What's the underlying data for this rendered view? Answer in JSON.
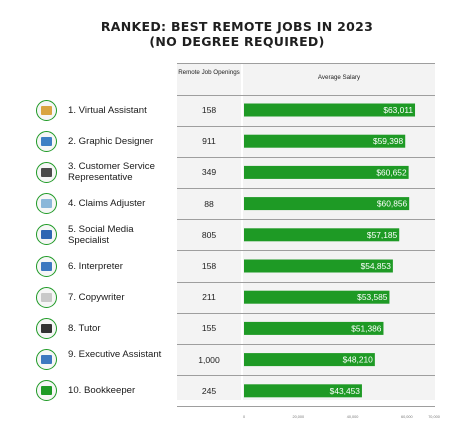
{
  "title_line1": "RANKED: BEST REMOTE JOBS IN 2023",
  "title_line2": "(NO DEGREE REQUIRED)",
  "headers": {
    "openings": "Remote Job Openings",
    "salary": "Average Salary"
  },
  "colors": {
    "bar": "#1e9a25",
    "icon_ring": "#1e9a25",
    "panel": "#f3f3f3"
  },
  "chart_data": {
    "type": "bar",
    "orientation": "horizontal",
    "title": "RANKED: BEST REMOTE JOBS IN 2023 (NO DEGREE REQUIRED)",
    "xlabel": "Average Salary",
    "xlim": [
      0,
      70000
    ],
    "x_ticks": [
      "0",
      "20,000",
      "40,000",
      "60,000",
      "70,000"
    ],
    "grid": true,
    "categories": [
      "1. Virtual Assistant",
      "2. Graphic Designer",
      "3. Customer Service Representative",
      "4. Claims Adjuster",
      "5. Social Media Specialist",
      "6. Interpreter",
      "7. Copywriter",
      "8. Tutor",
      "9. Executive Assistant",
      "10. Bookkeeper"
    ],
    "values": [
      63011,
      59398,
      60652,
      60856,
      57185,
      54853,
      53585,
      51386,
      48210,
      43453
    ],
    "value_labels": [
      "$63,011",
      "$59,398",
      "$60,652",
      "$60,856",
      "$57,185",
      "$54,853",
      "$53,585",
      "$51,386",
      "$48,210",
      "$43,453"
    ],
    "openings": [
      "158",
      "911",
      "349",
      "88",
      "805",
      "158",
      "211",
      "155",
      "1,000",
      "245"
    ]
  },
  "icons": [
    "briefcase-icon",
    "graphic-design-icon",
    "telephone-icon",
    "claims-document-icon",
    "smartphone-icon",
    "globe-icon",
    "copywriting-paper-icon",
    "chalkboard-icon",
    "computer-icon",
    "ledger-icon"
  ]
}
